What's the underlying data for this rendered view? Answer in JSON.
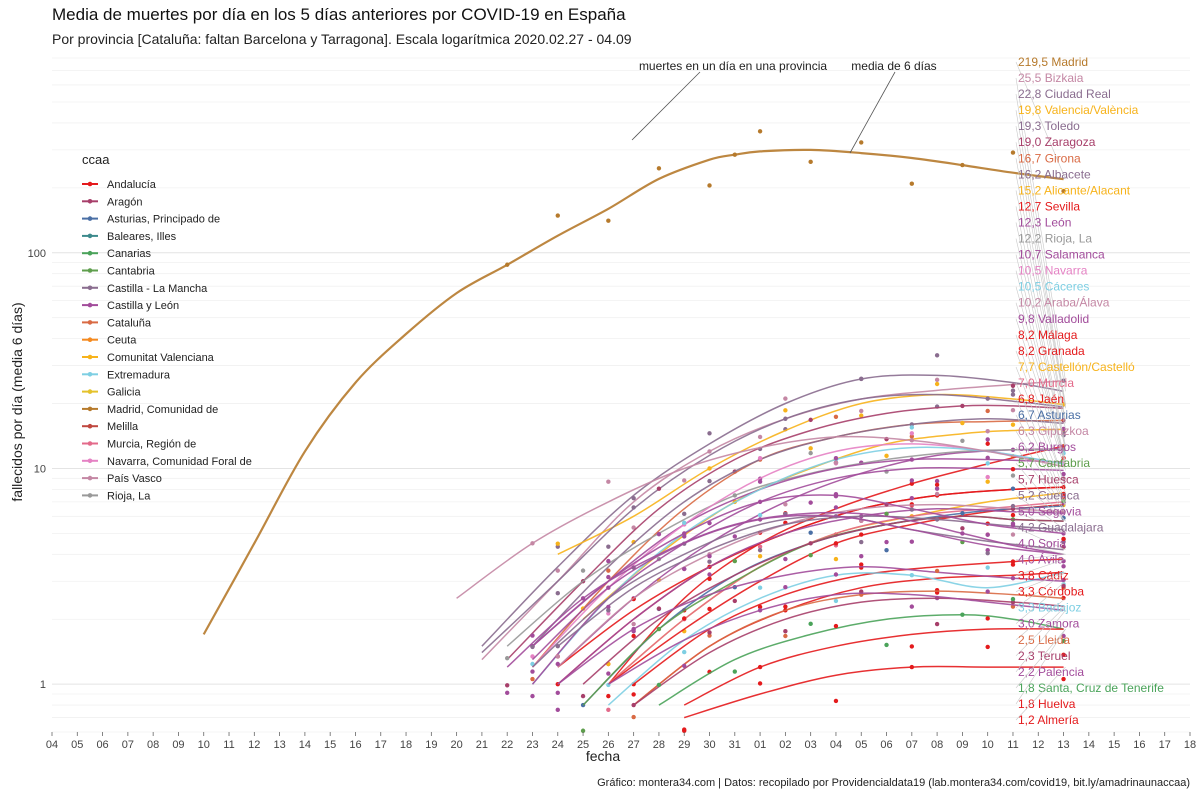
{
  "chart_data": {
    "type": "line",
    "title": "Media de muertes por día en los 5 días anteriores por COVID-19 en España",
    "subtitle": "Por provincia [Cataluña: faltan Barcelona y Tarragona]. Escala logarítmica  2020.02.27 - 04.09",
    "xlabel": "fecha",
    "ylabel": "fallecidos por día (media 6 días)",
    "caption": "Gráfico: montera34.com | Datos: recopilado por Providencialdata19 (lab.montera34.com/covid19, bit.ly/amadrinaunaccaa)",
    "y_scale": "log",
    "ylim": [
      0.6,
      800
    ],
    "y_ticks": [
      "1",
      "10",
      "100"
    ],
    "y_tick_values": [
      1,
      10,
      100
    ],
    "x_ticks": [
      "04",
      "05",
      "06",
      "07",
      "08",
      "09",
      "10",
      "11",
      "12",
      "13",
      "14",
      "15",
      "16",
      "17",
      "18",
      "19",
      "20",
      "21",
      "22",
      "23",
      "24",
      "25",
      "26",
      "27",
      "28",
      "29",
      "30",
      "31",
      "01",
      "02",
      "03",
      "04",
      "05",
      "06",
      "07",
      "08",
      "09",
      "10",
      "11",
      "12",
      "13",
      "14",
      "15",
      "16",
      "17",
      "18"
    ],
    "grid": true,
    "legend": {
      "title": "ccaa",
      "position": "left",
      "entries": [
        {
          "name": "Andalucía",
          "color": "#e41a1c"
        },
        {
          "name": "Aragón",
          "color": "#a73f6a"
        },
        {
          "name": "Asturias, Principado de",
          "color": "#4a6fa5"
        },
        {
          "name": "Baleares, Illes",
          "color": "#3d8a8c"
        },
        {
          "name": "Canarias",
          "color": "#4aa35a"
        },
        {
          "name": "Cantabria",
          "color": "#5e9e4c"
        },
        {
          "name": "Castilla - La Mancha",
          "color": "#8a6d8f"
        },
        {
          "name": "Castilla y León",
          "color": "#a24c9b"
        },
        {
          "name": "Cataluña",
          "color": "#d96a44"
        },
        {
          "name": "Ceuta",
          "color": "#f58a1f"
        },
        {
          "name": "Comunitat Valenciana",
          "color": "#f7b31b"
        },
        {
          "name": "Extremadura",
          "color": "#7ecfe3"
        },
        {
          "name": "Galicia",
          "color": "#e4c22b"
        },
        {
          "name": "Madrid, Comunidad de",
          "color": "#b67a2c"
        },
        {
          "name": "Melilla",
          "color": "#c0473f"
        },
        {
          "name": "Murcia, Región de",
          "color": "#e36a8a"
        },
        {
          "name": "Navarra, Comunidad Foral de",
          "color": "#e582c4"
        },
        {
          "name": "País Vasco",
          "color": "#c487a4"
        },
        {
          "name": "Rioja, La",
          "color": "#999999"
        }
      ]
    },
    "annotations": [
      {
        "text": "muertes en un día en una provincia"
      },
      {
        "text": "media de 6 días"
      }
    ],
    "series": [
      {
        "name": "Madrid",
        "label": "219,5 Madrid",
        "color": "#b67a2c",
        "x": [
          6,
          8,
          10,
          12,
          14,
          16,
          18,
          20,
          22,
          24,
          26,
          27,
          28,
          30,
          32,
          34,
          36,
          38,
          40
        ],
        "values": [
          1.7,
          4.5,
          12,
          25,
          42,
          65,
          88,
          120,
          160,
          220,
          270,
          285,
          295,
          300,
          290,
          275,
          255,
          235,
          219.5
        ]
      },
      {
        "name": "Bizkaia",
        "label": "25,5 Bizkaia",
        "color": "#c487a4",
        "x": [
          17,
          20,
          23,
          26,
          29,
          32,
          35,
          38,
          40
        ],
        "values": [
          1.3,
          3,
          7,
          12,
          17,
          21,
          23,
          24.5,
          25.5
        ]
      },
      {
        "name": "Ciudad Real",
        "label": "22,8 Ciudad Real",
        "color": "#8a6d8f",
        "x": [
          17,
          20,
          23,
          26,
          29,
          32,
          35,
          38,
          40
        ],
        "values": [
          1.5,
          3.5,
          7.5,
          13,
          20,
          26,
          27,
          25,
          22.8
        ]
      },
      {
        "name": "Valencia/València",
        "label": "19,8 Valencia/València",
        "color": "#f7b31b",
        "x": [
          20,
          23,
          26,
          29,
          32,
          35,
          38,
          40
        ],
        "values": [
          4,
          6,
          10,
          15,
          20,
          22,
          21,
          19.8
        ]
      },
      {
        "name": "Toledo",
        "label": "19,3 Toledo",
        "color": "#8a6d8f",
        "x": [
          17,
          20,
          23,
          26,
          29,
          32,
          35,
          38,
          40
        ],
        "values": [
          1.4,
          3,
          6.5,
          11.5,
          17,
          21,
          22,
          20.5,
          19.3
        ]
      },
      {
        "name": "Zaragoza",
        "label": "19,0 Zaragoza",
        "color": "#a73f6a",
        "x": [
          18,
          21,
          24,
          27,
          30,
          33,
          36,
          38,
          40
        ],
        "values": [
          1.3,
          3,
          6.5,
          11,
          15,
          18,
          19.5,
          19.5,
          19
        ]
      },
      {
        "name": "Girona",
        "label": "16,7 Girona",
        "color": "#d96a44",
        "x": [
          19,
          22,
          25,
          28,
          31,
          34,
          37,
          40
        ],
        "values": [
          1.2,
          3,
          6.5,
          11,
          14,
          16,
          16.5,
          16.7
        ]
      },
      {
        "name": "Albacete",
        "label": "16,2 Albacete",
        "color": "#8a6d8f",
        "x": [
          19,
          22,
          25,
          28,
          31,
          34,
          37,
          40
        ],
        "values": [
          1.5,
          3.5,
          7,
          11,
          14,
          16,
          17,
          16.2
        ]
      },
      {
        "name": "Alicante/Alacant",
        "label": "15,2 Alicante/Alacant",
        "color": "#f7b31b",
        "x": [
          21,
          24,
          27,
          30,
          33,
          36,
          38,
          40
        ],
        "values": [
          2,
          4,
          7,
          10,
          13,
          14.5,
          15,
          15.2
        ]
      },
      {
        "name": "Sevilla",
        "label": "12,7 Sevilla",
        "color": "#e41a1c",
        "x": [
          22,
          25,
          28,
          31,
          34,
          37,
          40
        ],
        "values": [
          1,
          2.5,
          4.5,
          6.5,
          8.5,
          10.5,
          12.7
        ]
      },
      {
        "name": "León",
        "label": "12,3 León",
        "color": "#a24c9b",
        "x": [
          20,
          23,
          26,
          29,
          32,
          35,
          38,
          40
        ],
        "values": [
          1.2,
          2.5,
          4.5,
          7,
          9.5,
          11.5,
          12.2,
          12.3
        ]
      },
      {
        "name": "Rioja, La",
        "label": "12,2 Rioja, La",
        "color": "#999999",
        "x": [
          18,
          21,
          24,
          27,
          30,
          33,
          36,
          38,
          40
        ],
        "values": [
          1.5,
          3,
          5,
          7.5,
          9.5,
          11,
          12,
          12.2,
          12.2
        ]
      },
      {
        "name": "Salamanca",
        "label": "10,7 Salamanca",
        "color": "#a24c9b",
        "x": [
          19,
          22,
          25,
          28,
          31,
          34,
          37,
          40
        ],
        "values": [
          1.5,
          3,
          5.5,
          8,
          10,
          11,
          11,
          10.7
        ]
      },
      {
        "name": "Navarra",
        "label": "10,5 Navarra",
        "color": "#e582c4",
        "x": [
          19,
          22,
          25,
          28,
          31,
          34,
          37,
          40
        ],
        "values": [
          1.2,
          2.8,
          5.5,
          9,
          12,
          13,
          12,
          10.5
        ]
      },
      {
        "name": "Cáceres",
        "label": "10,5 Cáceres",
        "color": "#7ecfe3",
        "x": [
          19,
          22,
          25,
          28,
          31,
          34,
          37,
          40
        ],
        "values": [
          1,
          2.5,
          5,
          8,
          11,
          12.5,
          12,
          10.5
        ]
      },
      {
        "name": "Araba/Álava",
        "label": "10,2 Araba/Álava",
        "color": "#c487a4",
        "x": [
          16,
          19,
          22,
          25,
          28,
          31,
          34,
          37,
          40
        ],
        "values": [
          2.5,
          4.5,
          7,
          10,
          12.5,
          14,
          13.5,
          12,
          10.2
        ]
      },
      {
        "name": "Valladolid",
        "label": "9,8 Valladolid",
        "color": "#a24c9b",
        "x": [
          19,
          22,
          25,
          28,
          31,
          34,
          37,
          40
        ],
        "values": [
          1,
          2.5,
          4.5,
          7,
          9,
          10,
          10,
          9.8
        ]
      },
      {
        "name": "Málaga",
        "label": "8,2 Málaga",
        "color": "#e41a1c",
        "x": [
          20,
          23,
          26,
          29,
          32,
          35,
          38,
          40
        ],
        "values": [
          1,
          2,
          3.5,
          5,
          6.5,
          7.5,
          8,
          8.2
        ]
      },
      {
        "name": "Granada",
        "label": "8,2 Granada",
        "color": "#e41a1c",
        "x": [
          20,
          23,
          26,
          29,
          32,
          35,
          38,
          40
        ],
        "values": [
          1.2,
          2.2,
          3.5,
          5,
          6.5,
          7.5,
          8,
          8.2
        ]
      },
      {
        "name": "Castellón/Castelló",
        "label": "7,7 Castellón/Castelló",
        "color": "#f7b31b",
        "x": [
          22,
          25,
          28,
          31,
          34,
          37,
          40
        ],
        "values": [
          1,
          2,
          3.5,
          5,
          6,
          7,
          7.7
        ]
      },
      {
        "name": "Murcia",
        "label": "7,0 Murcia",
        "color": "#e36a8a",
        "x": [
          22,
          25,
          28,
          31,
          34,
          37,
          40
        ],
        "values": [
          1,
          2,
          3.5,
          5,
          6,
          6.5,
          7
        ]
      },
      {
        "name": "Jaén",
        "label": "6,8 Jaén",
        "color": "#e41a1c",
        "x": [
          22,
          25,
          28,
          31,
          34,
          37,
          40
        ],
        "values": [
          1,
          1.8,
          3,
          4.5,
          5.5,
          6.3,
          6.8
        ]
      },
      {
        "name": "Asturias",
        "label": "6,7 Asturias",
        "color": "#4a6fa5",
        "x": [
          21,
          24,
          27,
          30,
          33,
          36,
          38,
          40
        ],
        "values": [
          0.8,
          1.8,
          3.2,
          4.5,
          5.5,
          6.2,
          6.5,
          6.7
        ]
      },
      {
        "name": "Gipuzkoa",
        "label": "6,3 Gipuzkoa",
        "color": "#c487a4",
        "x": [
          20,
          23,
          26,
          29,
          32,
          35,
          38,
          40
        ],
        "values": [
          1.2,
          2.5,
          4,
          5.5,
          6.5,
          6.8,
          6.5,
          6.3
        ]
      },
      {
        "name": "Burgos",
        "label": "6,2 Burgos",
        "color": "#a24c9b",
        "x": [
          20,
          23,
          26,
          29,
          32,
          35,
          38,
          40
        ],
        "values": [
          1,
          2,
          3.5,
          5,
          6,
          6.5,
          6.3,
          6.2
        ]
      },
      {
        "name": "Cantabria",
        "label": "5,7 Cantabria",
        "color": "#5e9e4c",
        "x": [
          21,
          24,
          27,
          30,
          33,
          36,
          38,
          40
        ],
        "values": [
          0.8,
          1.8,
          3,
          4.5,
          5.5,
          6,
          5.8,
          5.7
        ]
      },
      {
        "name": "Huesca",
        "label": "5,7 Huesca",
        "color": "#a73f6a",
        "x": [
          21,
          24,
          27,
          30,
          33,
          36,
          38,
          40
        ],
        "values": [
          1,
          2,
          3.2,
          4.5,
          5.5,
          6,
          5.8,
          5.7
        ]
      },
      {
        "name": "Cuenca",
        "label": "5,2 Cuenca",
        "color": "#8a6d8f",
        "x": [
          20,
          23,
          26,
          29,
          32,
          35,
          38,
          40
        ],
        "values": [
          1.5,
          2.8,
          4.2,
          5.5,
          6,
          5.8,
          5.4,
          5.2
        ]
      },
      {
        "name": "Segovia",
        "label": "5,0 Segovia",
        "color": "#a24c9b",
        "x": [
          19,
          22,
          25,
          28,
          31,
          34,
          37,
          40
        ],
        "values": [
          1.5,
          3,
          5,
          7,
          7.5,
          6.5,
          5.5,
          5
        ]
      },
      {
        "name": "Guadalajara",
        "label": "4,2 Guadalajara",
        "color": "#8a6d8f",
        "x": [
          19,
          22,
          25,
          28,
          31,
          34,
          37,
          40
        ],
        "values": [
          1.2,
          2.5,
          4,
          5.5,
          6,
          5.2,
          4.6,
          4.2
        ]
      },
      {
        "name": "Soria",
        "label": "4,0 Soria",
        "color": "#a24c9b",
        "x": [
          18,
          21,
          24,
          27,
          30,
          33,
          36,
          38,
          40
        ],
        "values": [
          1.2,
          2.5,
          4,
          5.5,
          6.2,
          6,
          5,
          4.4,
          4
        ]
      },
      {
        "name": "Ávila",
        "label": "4,0 Ávila",
        "color": "#a24c9b",
        "x": [
          19,
          22,
          25,
          28,
          31,
          34,
          37,
          40
        ],
        "values": [
          1.3,
          2.8,
          4.5,
          5.8,
          6,
          5.2,
          4.4,
          4
        ]
      },
      {
        "name": "Cádiz",
        "label": "3,8 Cádiz",
        "color": "#e41a1c",
        "x": [
          23,
          26,
          29,
          32,
          35,
          38,
          40
        ],
        "values": [
          1,
          1.8,
          2.6,
          3.2,
          3.5,
          3.7,
          3.8
        ]
      },
      {
        "name": "Córdoba",
        "label": "3,3 Córdoba",
        "color": "#e41a1c",
        "x": [
          23,
          26,
          29,
          32,
          35,
          38,
          40
        ],
        "values": [
          0.8,
          1.5,
          2.2,
          2.8,
          3.1,
          3.2,
          3.3
        ]
      },
      {
        "name": "Badajoz",
        "label": "3,3 Badajoz",
        "color": "#7ecfe3",
        "x": [
          22,
          25,
          28,
          31,
          34,
          37,
          40
        ],
        "values": [
          0.8,
          1.6,
          2.5,
          3.2,
          3.2,
          2.8,
          3.3
        ]
      },
      {
        "name": "Zamora",
        "label": "3,0 Zamora",
        "color": "#a24c9b",
        "x": [
          20,
          23,
          26,
          29,
          32,
          35,
          38,
          40
        ],
        "values": [
          1,
          1.8,
          2.6,
          3.2,
          3.5,
          3.3,
          3.1,
          3
        ]
      },
      {
        "name": "Lleida",
        "label": "2,5 Lleida",
        "color": "#d96a44",
        "x": [
          23,
          26,
          29,
          32,
          35,
          38,
          40
        ],
        "values": [
          0.8,
          1.5,
          2.2,
          2.6,
          2.7,
          2.6,
          2.5
        ]
      },
      {
        "name": "Teruel",
        "label": "2,3 Teruel",
        "color": "#a73f6a",
        "x": [
          23,
          26,
          29,
          32,
          35,
          38,
          40
        ],
        "values": [
          0.8,
          1.4,
          2,
          2.4,
          2.5,
          2.4,
          2.3
        ]
      },
      {
        "name": "Palencia",
        "label": "2,2 Palencia",
        "color": "#a24c9b",
        "x": [
          22,
          25,
          28,
          31,
          34,
          37,
          40
        ],
        "values": [
          1,
          1.6,
          2.2,
          2.6,
          2.6,
          2.4,
          2.2
        ]
      },
      {
        "name": "Santa, Cruz de Tenerife",
        "label": "1,8 Santa, Cruz de Tenerife",
        "color": "#4aa35a",
        "x": [
          24,
          27,
          30,
          33,
          36,
          38,
          40
        ],
        "values": [
          0.8,
          1.3,
          1.7,
          2,
          2.1,
          2,
          1.8
        ]
      },
      {
        "name": "Huelva",
        "label": "1,8 Huelva",
        "color": "#e41a1c",
        "x": [
          25,
          28,
          31,
          34,
          37,
          40
        ],
        "values": [
          0.8,
          1.2,
          1.5,
          1.7,
          1.8,
          1.8
        ]
      },
      {
        "name": "Almería",
        "label": "1,2 Almería",
        "color": "#e41a1c",
        "x": [
          25,
          28,
          31,
          34,
          37,
          40
        ],
        "values": [
          0.7,
          0.9,
          1.1,
          1.2,
          1.2,
          1.2
        ]
      }
    ]
  }
}
